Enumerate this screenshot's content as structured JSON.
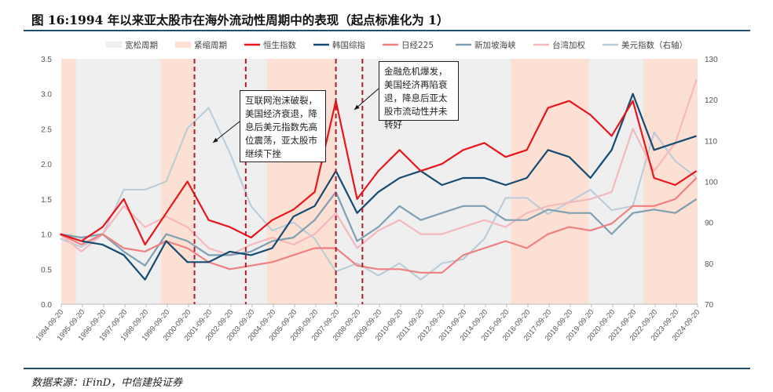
{
  "title": "图 16:1994 年以来亚太股市在海外流动性周期中的表现（起点标准化为 1）",
  "source": "数据来源：iFinD，中信建投证券",
  "annotations": [
    "互联网泡沫破裂，美国经济衰退，降息后美元指数先高位震荡，亚太股市继续下挫",
    "金融危机爆发，美国经济再陷衰退，降息后亚太股市流动性并未转好"
  ],
  "chart_data": {
    "type": "line",
    "legend_position": "top",
    "grid": false,
    "legend": [
      {
        "label": "宽松周期",
        "kind": "area",
        "color": "#efefef"
      },
      {
        "label": "紧缩周期",
        "kind": "area",
        "color": "#fbe0d3"
      },
      {
        "label": "恒生指数",
        "kind": "line",
        "color": "#e8161b"
      },
      {
        "label": "韩国综指",
        "kind": "line",
        "color": "#154a72"
      },
      {
        "label": "日经225",
        "kind": "line",
        "color": "#f08080"
      },
      {
        "label": "新加坡海峡",
        "kind": "line",
        "color": "#7f9fb2"
      },
      {
        "label": "台湾加权",
        "kind": "line",
        "color": "#f5b8bd"
      },
      {
        "label": "美元指数（右轴）",
        "kind": "line",
        "color": "#b8cbd9"
      }
    ],
    "x_ticks": [
      "1994-09-20",
      "1995-09-20",
      "1996-09-20",
      "1997-09-20",
      "1998-09-20",
      "1999-09-20",
      "2000-09-20",
      "2001-09-20",
      "2002-09-20",
      "2003-09-20",
      "2004-09-20",
      "2005-09-20",
      "2006-09-20",
      "2007-09-20",
      "2008-09-20",
      "2009-09-20",
      "2010-09-20",
      "2011-09-20",
      "2012-09-20",
      "2013-09-20",
      "2014-09-20",
      "2015-09-20",
      "2016-09-20",
      "2017-09-20",
      "2018-09-20",
      "2019-09-20",
      "2020-09-20",
      "2021-09-20",
      "2022-09-20",
      "2023-09-20",
      "2024-09-20"
    ],
    "y_left": {
      "range": [
        0,
        3.5
      ],
      "ticks": [
        "0.0",
        "0.5",
        "1.0",
        "1.5",
        "2.0",
        "2.5",
        "3.0",
        "3.5"
      ]
    },
    "y_right": {
      "range": [
        70,
        130
      ],
      "ticks": [
        "70",
        "80",
        "90",
        "100",
        "110",
        "120",
        "130"
      ]
    },
    "tightening_periods": [
      [
        "1994-09",
        "1995-06"
      ],
      [
        "1999-06",
        "2001-01"
      ],
      [
        "2004-06",
        "2007-09"
      ],
      [
        "2015-12",
        "2019-08"
      ],
      [
        "2022-03",
        "2024-11"
      ]
    ],
    "rate_cut_markers": [
      "2001-01",
      "2003-06",
      "2007-09",
      "2008-12"
    ],
    "x": [
      "1994-09",
      "1995-09",
      "1996-09",
      "1997-09",
      "1998-09",
      "1999-09",
      "2000-09",
      "2001-09",
      "2002-09",
      "2003-09",
      "2004-09",
      "2005-09",
      "2006-09",
      "2007-09",
      "2008-09",
      "2009-09",
      "2010-09",
      "2011-09",
      "2012-09",
      "2013-09",
      "2014-09",
      "2015-09",
      "2016-09",
      "2017-09",
      "2018-09",
      "2019-09",
      "2020-09",
      "2021-09",
      "2022-09",
      "2023-09",
      "2024-09"
    ],
    "series": [
      {
        "name": "恒生指数",
        "axis": "left",
        "values": [
          1.0,
          0.9,
          1.1,
          1.5,
          0.85,
          1.3,
          1.75,
          1.2,
          1.1,
          0.95,
          1.2,
          1.35,
          1.6,
          2.9,
          1.5,
          1.9,
          2.2,
          1.9,
          2.0,
          2.2,
          2.3,
          2.1,
          2.2,
          2.8,
          2.9,
          2.7,
          2.4,
          2.9,
          1.8,
          1.7,
          1.9
        ]
      },
      {
        "name": "韩国综指",
        "axis": "left",
        "values": [
          1.0,
          0.9,
          0.85,
          0.7,
          0.35,
          0.9,
          0.6,
          0.6,
          0.75,
          0.7,
          0.8,
          1.25,
          1.4,
          1.9,
          1.3,
          1.6,
          1.8,
          1.9,
          1.7,
          1.8,
          1.8,
          1.7,
          1.8,
          2.2,
          2.1,
          1.8,
          2.2,
          3.0,
          2.2,
          2.3,
          2.4
        ]
      },
      {
        "name": "日经225",
        "axis": "left",
        "values": [
          1.0,
          0.85,
          1.0,
          0.8,
          0.75,
          0.9,
          0.8,
          0.6,
          0.5,
          0.55,
          0.6,
          0.7,
          0.8,
          0.8,
          0.55,
          0.5,
          0.5,
          0.45,
          0.45,
          0.7,
          0.8,
          0.9,
          0.8,
          1.0,
          1.1,
          1.05,
          1.15,
          1.4,
          1.4,
          1.5,
          1.8
        ]
      },
      {
        "name": "新加坡海峡",
        "axis": "left",
        "values": [
          1.0,
          0.95,
          1.0,
          0.75,
          0.55,
          1.0,
          0.9,
          0.7,
          0.7,
          0.75,
          0.9,
          0.95,
          1.2,
          1.6,
          0.9,
          1.1,
          1.4,
          1.2,
          1.3,
          1.4,
          1.4,
          1.2,
          1.2,
          1.35,
          1.3,
          1.3,
          1.0,
          1.3,
          1.35,
          1.3,
          1.5
        ]
      },
      {
        "name": "台湾加权",
        "axis": "left",
        "values": [
          1.0,
          0.75,
          1.0,
          1.4,
          1.1,
          1.25,
          1.1,
          0.8,
          0.7,
          0.85,
          0.95,
          0.85,
          1.0,
          1.3,
          0.8,
          1.05,
          1.2,
          1.0,
          1.0,
          1.1,
          1.2,
          1.1,
          1.3,
          1.4,
          1.45,
          1.5,
          1.6,
          2.5,
          1.9,
          2.3,
          3.2
        ]
      },
      {
        "name": "美元指数（右轴）",
        "axis": "right",
        "values": [
          86,
          84,
          87,
          98,
          98,
          100,
          113,
          118,
          107,
          94,
          88,
          90,
          86,
          78,
          80,
          77,
          80,
          76,
          80,
          81,
          86,
          96,
          96,
          92,
          95,
          98,
          93,
          94,
          112,
          105,
          101
        ]
      }
    ]
  }
}
